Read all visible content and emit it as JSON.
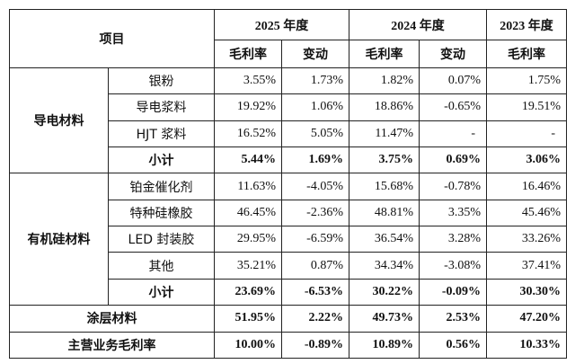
{
  "header": {
    "item_label": "项目",
    "year_2025": "2025 年度",
    "year_2024": "2024 年度",
    "year_2023": "2023 年度",
    "gross_margin": "毛利率",
    "change": "变动"
  },
  "groups": [
    {
      "name": "导电材料",
      "rows": [
        {
          "label": "银粉",
          "v2025": "3.55%",
          "c2025": "1.73%",
          "v2024": "1.82%",
          "c2024": "0.07%",
          "v2023": "1.75%"
        },
        {
          "label": "导电浆料",
          "v2025": "19.92%",
          "c2025": "1.06%",
          "v2024": "18.86%",
          "c2024": "-0.65%",
          "v2023": "19.51%"
        },
        {
          "label": "HJT 浆料",
          "v2025": "16.52%",
          "c2025": "5.05%",
          "v2024": "11.47%",
          "c2024": "-",
          "v2023": "-"
        }
      ],
      "subtotal": {
        "label": "小计",
        "v2025": "5.44%",
        "c2025": "1.69%",
        "v2024": "3.75%",
        "c2024": "0.69%",
        "v2023": "3.06%"
      }
    },
    {
      "name": "有机硅材料",
      "rows": [
        {
          "label": "铂金催化剂",
          "v2025": "11.63%",
          "c2025": "-4.05%",
          "v2024": "15.68%",
          "c2024": "-0.78%",
          "v2023": "16.46%"
        },
        {
          "label": "特种硅橡胶",
          "v2025": "46.45%",
          "c2025": "-2.36%",
          "v2024": "48.81%",
          "c2024": "3.35%",
          "v2023": "45.46%"
        },
        {
          "label": "LED 封装胶",
          "v2025": "29.95%",
          "c2025": "-6.59%",
          "v2024": "36.54%",
          "c2024": "3.28%",
          "v2023": "33.26%"
        },
        {
          "label": "其他",
          "v2025": "35.21%",
          "c2025": "0.87%",
          "v2024": "34.34%",
          "c2024": "-3.08%",
          "v2023": "37.41%"
        }
      ],
      "subtotal": {
        "label": "小计",
        "v2025": "23.69%",
        "c2025": "-6.53%",
        "v2024": "30.22%",
        "c2024": "-0.09%",
        "v2023": "30.30%"
      }
    }
  ],
  "coating": {
    "label": "涂层材料",
    "v2025": "51.95%",
    "c2025": "2.22%",
    "v2024": "49.73%",
    "c2024": "2.53%",
    "v2023": "47.20%"
  },
  "total": {
    "label": "主营业务毛利率",
    "v2025": "10.00%",
    "c2025": "-0.89%",
    "v2024": "10.89%",
    "c2024": "0.56%",
    "v2023": "10.33%"
  }
}
